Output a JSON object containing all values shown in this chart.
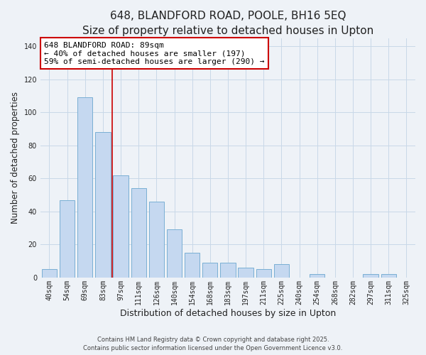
{
  "title": "648, BLANDFORD ROAD, POOLE, BH16 5EQ",
  "subtitle": "Size of property relative to detached houses in Upton",
  "xlabel": "Distribution of detached houses by size in Upton",
  "ylabel": "Number of detached properties",
  "categories": [
    "40sqm",
    "54sqm",
    "69sqm",
    "83sqm",
    "97sqm",
    "111sqm",
    "126sqm",
    "140sqm",
    "154sqm",
    "168sqm",
    "183sqm",
    "197sqm",
    "211sqm",
    "225sqm",
    "240sqm",
    "254sqm",
    "268sqm",
    "282sqm",
    "297sqm",
    "311sqm",
    "325sqm"
  ],
  "values": [
    5,
    47,
    109,
    88,
    62,
    54,
    46,
    29,
    15,
    9,
    9,
    6,
    5,
    8,
    0,
    2,
    0,
    0,
    2,
    2,
    0
  ],
  "bar_color": "#c5d8f0",
  "bar_edge_color": "#7aafd4",
  "grid_color": "#c8d8e8",
  "background_color": "#eef2f7",
  "vline_color": "#cc0000",
  "annotation_text": "648 BLANDFORD ROAD: 89sqm\n← 40% of detached houses are smaller (197)\n59% of semi-detached houses are larger (290) →",
  "annotation_box_color": "#ffffff",
  "annotation_box_edge_color": "#cc0000",
  "ylim": [
    0,
    145
  ],
  "yticks": [
    0,
    20,
    40,
    60,
    80,
    100,
    120,
    140
  ],
  "footer_line1": "Contains HM Land Registry data © Crown copyright and database right 2025.",
  "footer_line2": "Contains public sector information licensed under the Open Government Licence v3.0.",
  "title_fontsize": 11,
  "subtitle_fontsize": 9.5,
  "ylabel_fontsize": 8.5,
  "xlabel_fontsize": 9,
  "annotation_fontsize": 8,
  "tick_fontsize": 7,
  "footer_fontsize": 6
}
